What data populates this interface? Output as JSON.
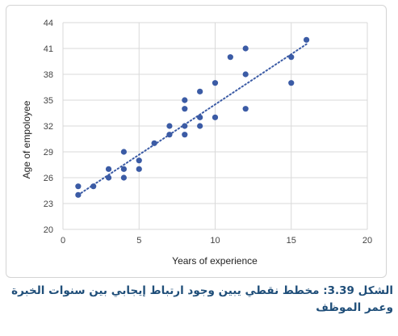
{
  "chart_data": {
    "type": "scatter",
    "title": "",
    "xlabel": "Years of experience",
    "ylabel": "Age of empoloyee",
    "xlim": [
      0,
      20
    ],
    "ylim": [
      20,
      44
    ],
    "x_ticks": [
      0,
      5,
      10,
      15,
      20
    ],
    "y_ticks": [
      20,
      23,
      26,
      29,
      32,
      35,
      38,
      41,
      44
    ],
    "grid": true,
    "point_color": "#3b5ba5",
    "trendline": {
      "style": "dotted",
      "color": "#3b5ba5",
      "from": [
        1,
        24
      ],
      "to": [
        16,
        41.5
      ]
    },
    "points": [
      {
        "x": 1,
        "y": 25
      },
      {
        "x": 1,
        "y": 24
      },
      {
        "x": 2,
        "y": 25
      },
      {
        "x": 3,
        "y": 27
      },
      {
        "x": 3,
        "y": 26
      },
      {
        "x": 4,
        "y": 29
      },
      {
        "x": 4,
        "y": 27
      },
      {
        "x": 4,
        "y": 26
      },
      {
        "x": 5,
        "y": 28
      },
      {
        "x": 5,
        "y": 27
      },
      {
        "x": 6,
        "y": 30
      },
      {
        "x": 7,
        "y": 32
      },
      {
        "x": 7,
        "y": 31
      },
      {
        "x": 8,
        "y": 35
      },
      {
        "x": 8,
        "y": 34
      },
      {
        "x": 8,
        "y": 32
      },
      {
        "x": 8,
        "y": 31
      },
      {
        "x": 9,
        "y": 36
      },
      {
        "x": 9,
        "y": 33
      },
      {
        "x": 9,
        "y": 32
      },
      {
        "x": 10,
        "y": 37
      },
      {
        "x": 10,
        "y": 33
      },
      {
        "x": 11,
        "y": 40
      },
      {
        "x": 12,
        "y": 41
      },
      {
        "x": 12,
        "y": 38
      },
      {
        "x": 12,
        "y": 34
      },
      {
        "x": 15,
        "y": 40
      },
      {
        "x": 15,
        "y": 37
      },
      {
        "x": 16,
        "y": 42
      }
    ]
  },
  "caption": {
    "line1": "الشكل 3.39: مخطط نقطي يبين وجود ارتباط إيجابي بين سنوات الخبرة",
    "line2": "وعمر الموظف"
  }
}
